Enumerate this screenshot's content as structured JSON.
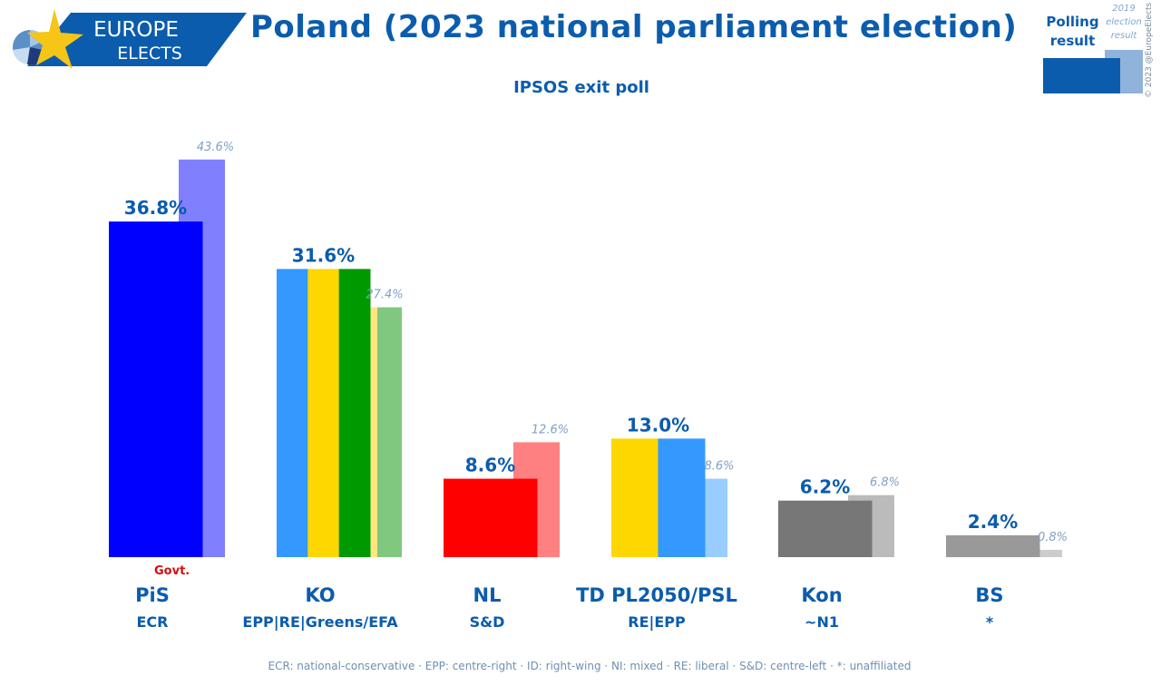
{
  "header": {
    "logo_line1": "EUROPE",
    "logo_line2": "ELECTS",
    "title": "Poland (2023 national parliament election)",
    "subtitle": "IPSOS exit poll"
  },
  "legend": {
    "polling_label_line1": "Polling",
    "polling_label_line2": "result",
    "prev_label_line1": "2019",
    "prev_label_line2": "election",
    "prev_label_line3": "result",
    "copyright": "© 2023 @EuropeElects"
  },
  "chart_data": {
    "type": "bar",
    "title": "Poland (2023 national parliament election)",
    "subtitle": "IPSOS exit poll",
    "xlabel": "",
    "ylabel": "",
    "ylim": [
      0,
      45
    ],
    "grid": false,
    "legend_position": "top-right",
    "categories": [
      "PiS",
      "KO",
      "NL",
      "TD PL2050/PSL",
      "Kon",
      "BS"
    ],
    "groups": [
      "ECR",
      "EPP|RE|Greens/EFA",
      "S&D",
      "RE|EPP",
      "~N1",
      "*"
    ],
    "series": [
      {
        "name": "Polling result",
        "values": [
          36.8,
          31.6,
          8.6,
          13.0,
          6.2,
          2.4
        ],
        "labels": [
          "36.8%",
          "31.6%",
          "8.6%",
          "13.0%",
          "6.2%",
          "2.4%"
        ]
      },
      {
        "name": "2019 election result",
        "values": [
          43.6,
          27.4,
          12.6,
          8.6,
          6.8,
          0.8
        ],
        "labels": [
          "43.6%",
          "27.4%",
          "12.6%",
          "8.6%",
          "6.8%",
          "0.8%"
        ]
      }
    ],
    "bar_colors": [
      [
        "#0000ff"
      ],
      [
        "#3399ff",
        "#ffd700",
        "#009900"
      ],
      [
        "#ff0000"
      ],
      [
        "#ffd700",
        "#3399ff"
      ],
      [
        "#777777"
      ],
      [
        "#999999"
      ]
    ],
    "prev_colors": [
      [
        "#8080ff"
      ],
      [
        "#ffe680",
        "#80c880"
      ],
      [
        "#ff8080"
      ],
      [
        "#99ccff"
      ],
      [
        "#bbbbbb"
      ],
      [
        "#cccccc"
      ]
    ],
    "annotations": [
      {
        "category": "PiS",
        "text": "Govt."
      }
    ]
  },
  "footnote": "ECR: national-conservative · EPP: centre-right · ID: right-wing · NI: mixed · RE: liberal · S&D: centre-left · *: unaffiliated"
}
